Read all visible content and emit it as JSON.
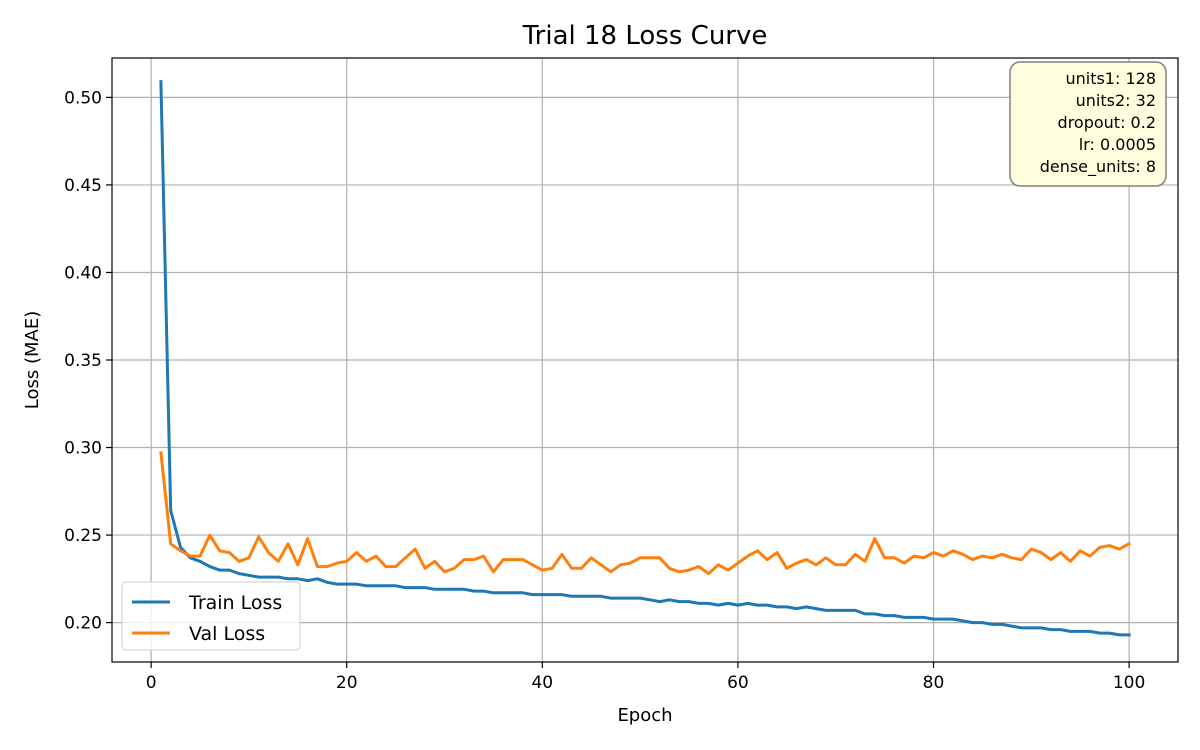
{
  "chart_data": {
    "type": "line",
    "title": "Trial 18 Loss Curve",
    "xlabel": "Epoch",
    "ylabel": "Loss (MAE)",
    "xlim": [
      -4,
      105
    ],
    "ylim": [
      0.1775,
      0.5225
    ],
    "xticks": [
      0,
      20,
      40,
      60,
      80,
      100
    ],
    "yticks": [
      0.2,
      0.25,
      0.3,
      0.35,
      0.4,
      0.45,
      0.5
    ],
    "grid": true,
    "legend_position": "lower-left",
    "series": [
      {
        "name": "Train Loss",
        "color": "#1f77b4",
        "x": [
          1,
          2,
          3,
          4,
          5,
          6,
          7,
          8,
          9,
          10,
          11,
          12,
          13,
          14,
          15,
          16,
          17,
          18,
          19,
          20,
          21,
          22,
          23,
          24,
          25,
          26,
          27,
          28,
          29,
          30,
          31,
          32,
          33,
          34,
          35,
          36,
          37,
          38,
          39,
          40,
          41,
          42,
          43,
          44,
          45,
          46,
          47,
          48,
          49,
          50,
          51,
          52,
          53,
          54,
          55,
          56,
          57,
          58,
          59,
          60,
          61,
          62,
          63,
          64,
          65,
          66,
          67,
          68,
          69,
          70,
          71,
          72,
          73,
          74,
          75,
          76,
          77,
          78,
          79,
          80,
          81,
          82,
          83,
          84,
          85,
          86,
          87,
          88,
          89,
          90,
          91,
          92,
          93,
          94,
          95,
          96,
          97,
          98,
          99,
          100
        ],
        "values": [
          0.509,
          0.264,
          0.243,
          0.237,
          0.235,
          0.232,
          0.23,
          0.23,
          0.228,
          0.227,
          0.226,
          0.226,
          0.226,
          0.225,
          0.225,
          0.224,
          0.225,
          0.223,
          0.222,
          0.222,
          0.222,
          0.221,
          0.221,
          0.221,
          0.221,
          0.22,
          0.22,
          0.22,
          0.219,
          0.219,
          0.219,
          0.219,
          0.218,
          0.218,
          0.217,
          0.217,
          0.217,
          0.217,
          0.216,
          0.216,
          0.216,
          0.216,
          0.215,
          0.215,
          0.215,
          0.215,
          0.214,
          0.214,
          0.214,
          0.214,
          0.213,
          0.212,
          0.213,
          0.212,
          0.212,
          0.211,
          0.211,
          0.21,
          0.211,
          0.21,
          0.211,
          0.21,
          0.21,
          0.209,
          0.209,
          0.208,
          0.209,
          0.208,
          0.207,
          0.207,
          0.207,
          0.207,
          0.205,
          0.205,
          0.204,
          0.204,
          0.203,
          0.203,
          0.203,
          0.202,
          0.202,
          0.202,
          0.201,
          0.2,
          0.2,
          0.199,
          0.199,
          0.198,
          0.197,
          0.197,
          0.197,
          0.196,
          0.196,
          0.195,
          0.195,
          0.195,
          0.194,
          0.194,
          0.193,
          0.193
        ]
      },
      {
        "name": "Val Loss",
        "color": "#ff7f0e",
        "x": [
          1,
          2,
          3,
          4,
          5,
          6,
          7,
          8,
          9,
          10,
          11,
          12,
          13,
          14,
          15,
          16,
          17,
          18,
          19,
          20,
          21,
          22,
          23,
          24,
          25,
          26,
          27,
          28,
          29,
          30,
          31,
          32,
          33,
          34,
          35,
          36,
          37,
          38,
          39,
          40,
          41,
          42,
          43,
          44,
          45,
          46,
          47,
          48,
          49,
          50,
          51,
          52,
          53,
          54,
          55,
          56,
          57,
          58,
          59,
          60,
          61,
          62,
          63,
          64,
          65,
          66,
          67,
          68,
          69,
          70,
          71,
          72,
          73,
          74,
          75,
          76,
          77,
          78,
          79,
          80,
          81,
          82,
          83,
          84,
          85,
          86,
          87,
          88,
          89,
          90,
          91,
          92,
          93,
          94,
          95,
          96,
          97,
          98,
          99,
          100
        ],
        "values": [
          0.297,
          0.245,
          0.241,
          0.238,
          0.238,
          0.25,
          0.241,
          0.24,
          0.235,
          0.237,
          0.249,
          0.24,
          0.235,
          0.245,
          0.233,
          0.248,
          0.232,
          0.232,
          0.234,
          0.235,
          0.24,
          0.235,
          0.238,
          0.232,
          0.232,
          0.237,
          0.242,
          0.231,
          0.235,
          0.229,
          0.231,
          0.236,
          0.236,
          0.238,
          0.229,
          0.236,
          0.236,
          0.236,
          0.233,
          0.23,
          0.231,
          0.239,
          0.231,
          0.231,
          0.237,
          0.233,
          0.229,
          0.233,
          0.234,
          0.237,
          0.237,
          0.237,
          0.231,
          0.229,
          0.23,
          0.232,
          0.228,
          0.233,
          0.23,
          0.234,
          0.238,
          0.241,
          0.236,
          0.24,
          0.231,
          0.234,
          0.236,
          0.233,
          0.237,
          0.233,
          0.233,
          0.239,
          0.235,
          0.248,
          0.237,
          0.237,
          0.234,
          0.238,
          0.237,
          0.24,
          0.238,
          0.241,
          0.239,
          0.236,
          0.238,
          0.237,
          0.239,
          0.237,
          0.236,
          0.242,
          0.24,
          0.236,
          0.24,
          0.235,
          0.241,
          0.238,
          0.243,
          0.244,
          0.242,
          0.245
        ]
      }
    ],
    "annotation_box": {
      "lines": [
        "units1: 128",
        "units2: 32",
        "dropout: 0.2",
        "lr: 0.0005",
        "dense_units: 8"
      ],
      "background": "#ffffe0",
      "border": "#808080",
      "position": "top-right"
    }
  }
}
